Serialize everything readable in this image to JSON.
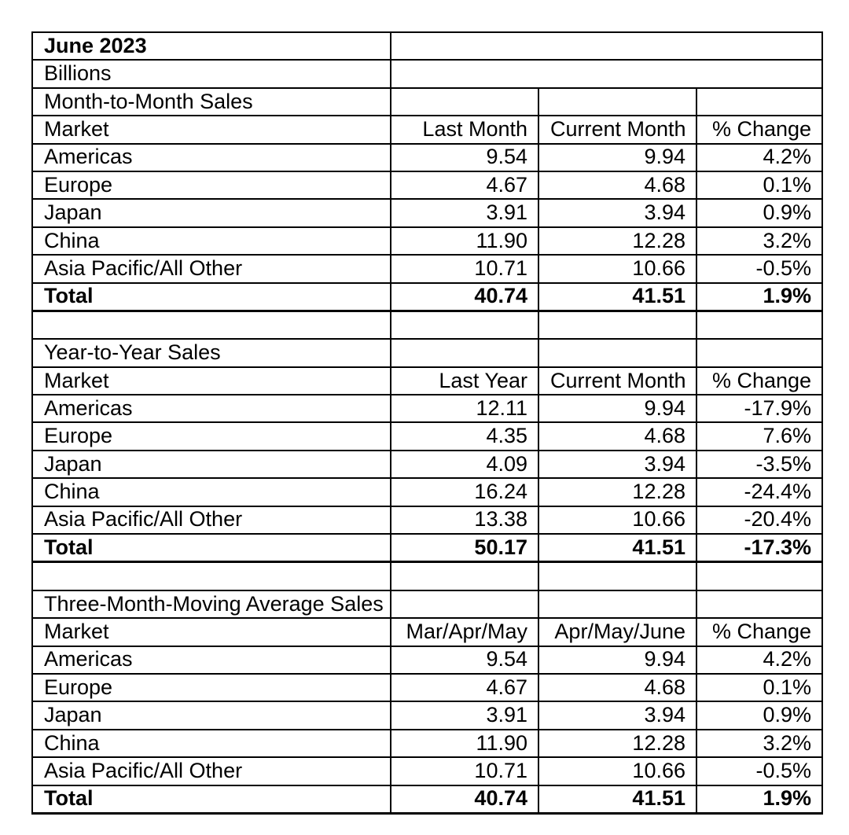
{
  "report": {
    "period": "June 2023",
    "units": "Billions"
  },
  "sections": [
    {
      "title": "Month-to-Month Sales",
      "headers": {
        "market": "Market",
        "col1": "Last Month",
        "col2": "Current Month",
        "col3": "% Change"
      },
      "rows": [
        [
          "Americas",
          "9.54",
          "9.94",
          "4.2%"
        ],
        [
          "Europe",
          "4.67",
          "4.68",
          "0.1%"
        ],
        [
          "Japan",
          "3.91",
          "3.94",
          "0.9%"
        ],
        [
          "China",
          "11.90",
          "12.28",
          "3.2%"
        ],
        [
          "Asia Pacific/All Other",
          "10.71",
          "10.66",
          "-0.5%"
        ]
      ],
      "total": [
        "Total",
        "40.74",
        "41.51",
        "1.9%"
      ]
    },
    {
      "title": "Year-to-Year Sales",
      "headers": {
        "market": "Market",
        "col1": "Last Year",
        "col2": "Current Month",
        "col3": "% Change"
      },
      "rows": [
        [
          "Americas",
          "12.11",
          "9.94",
          "-17.9%"
        ],
        [
          "Europe",
          "4.35",
          "4.68",
          "7.6%"
        ],
        [
          "Japan",
          "4.09",
          "3.94",
          "-3.5%"
        ],
        [
          "China",
          "16.24",
          "12.28",
          "-24.4%"
        ],
        [
          "Asia Pacific/All Other",
          "13.38",
          "10.66",
          "-20.4%"
        ]
      ],
      "total": [
        "Total",
        "50.17",
        "41.51",
        "-17.3%"
      ]
    },
    {
      "title": "Three-Month-Moving Average Sales",
      "headers": {
        "market": "Market",
        "col1": "Mar/Apr/May",
        "col2": "Apr/May/June",
        "col3": "% Change"
      },
      "rows": [
        [
          "Americas",
          "9.54",
          "9.94",
          "4.2%"
        ],
        [
          "Europe",
          "4.67",
          "4.68",
          "0.1%"
        ],
        [
          "Japan",
          "3.91",
          "3.94",
          "0.9%"
        ],
        [
          "China",
          "11.90",
          "12.28",
          "3.2%"
        ],
        [
          "Asia Pacific/All Other",
          "10.71",
          "10.66",
          "-0.5%"
        ]
      ],
      "total": [
        "Total",
        "40.74",
        "41.51",
        "1.9%"
      ]
    }
  ],
  "colors": {
    "border": "#000000",
    "text": "#000000",
    "background": "#ffffff"
  }
}
